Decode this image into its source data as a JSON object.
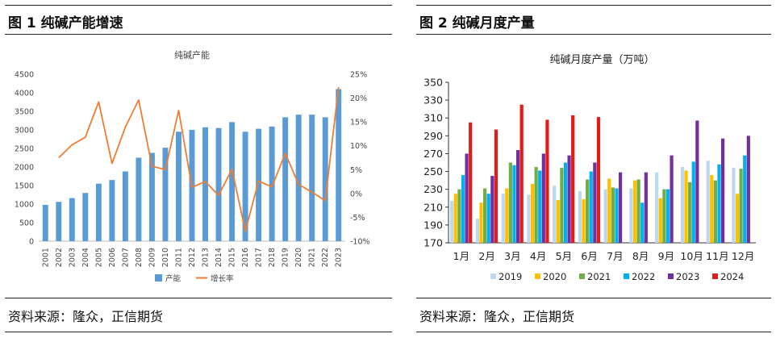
{
  "left": {
    "title": "图 1  纯碱产能增速",
    "source": "资料来源：隆众，正信期货",
    "chart_data": {
      "type": "bar",
      "title": "纯碱产能",
      "categories": [
        "2001",
        "2002",
        "2003",
        "2004",
        "2005",
        "2006",
        "2007",
        "2008",
        "2009",
        "2010",
        "2011",
        "2012",
        "2013",
        "2014",
        "2015",
        "2016",
        "2017",
        "2018",
        "2019",
        "2020",
        "2021",
        "2022",
        "2023"
      ],
      "series": [
        {
          "name": "产能",
          "type": "bar",
          "axis": "left",
          "color": "#5b9bd5",
          "values": [
            980,
            1060,
            1160,
            1300,
            1550,
            1650,
            1880,
            2250,
            2380,
            2520,
            2950,
            3000,
            3070,
            3050,
            3210,
            2950,
            3030,
            3090,
            3340,
            3410,
            3410,
            3340,
            4100
          ]
        },
        {
          "name": "增长率",
          "type": "line",
          "axis": "right",
          "color": "#ed7d31",
          "values": [
            null,
            7.5,
            10.2,
            11.8,
            19.2,
            6.3,
            13.9,
            19.6,
            5.7,
            5.0,
            17.4,
            1.3,
            2.5,
            -0.4,
            5.1,
            -7.9,
            2.6,
            1.4,
            8.4,
            1.9,
            0.3,
            -1.5,
            22.3
          ]
        }
      ],
      "ylim_left": [
        0,
        4500
      ],
      "yticks_left": [
        "0",
        "500",
        "1000",
        "1500",
        "2000",
        "2500",
        "3000",
        "3500",
        "4000",
        "4500"
      ],
      "ylim_right": [
        -10,
        25
      ],
      "yticks_right": [
        "-10%",
        "-5%",
        "0%",
        "5%",
        "10%",
        "15%",
        "20%",
        "25%"
      ],
      "legend": [
        "产能",
        "增长率"
      ]
    }
  },
  "right": {
    "title": "图 2    纯碱月度产量",
    "source": "资料来源：隆众，正信期货",
    "chart_data": {
      "type": "bar",
      "title": "纯碱月度产量（万吨）",
      "categories": [
        "1月",
        "2月",
        "3月",
        "4月",
        "5月",
        "6月",
        "7月",
        "8月",
        "9月",
        "10月",
        "11月",
        "12月"
      ],
      "ylim": [
        170,
        350
      ],
      "yticks": [
        "170",
        "190",
        "210",
        "230",
        "250",
        "270",
        "290",
        "310",
        "330",
        "350"
      ],
      "series": [
        {
          "name": "2019",
          "color": "#bdd7ee",
          "values": [
            217,
            197,
            225,
            224,
            234,
            228,
            230,
            231,
            249,
            255,
            262,
            254
          ]
        },
        {
          "name": "2020",
          "color": "#ffc000",
          "values": [
            225,
            215,
            231,
            236,
            218,
            219,
            242,
            240,
            220,
            251,
            246,
            225
          ]
        },
        {
          "name": "2021",
          "color": "#70ad47",
          "values": [
            230,
            231,
            260,
            255,
            254,
            241,
            232,
            241,
            230,
            238,
            240,
            253
          ]
        },
        {
          "name": "2022",
          "color": "#00b0f0",
          "values": [
            246,
            225,
            257,
            251,
            260,
            250,
            231,
            215,
            230,
            261,
            258,
            268
          ]
        },
        {
          "name": "2023",
          "color": "#7030a0",
          "values": [
            270,
            245,
            274,
            270,
            268,
            260,
            249,
            249,
            268,
            307,
            287,
            290
          ]
        },
        {
          "name": "2024",
          "color": "#e21b1b",
          "values": [
            305,
            297,
            325,
            308,
            313,
            311,
            null,
            null,
            null,
            null,
            null,
            null
          ]
        }
      ]
    }
  }
}
